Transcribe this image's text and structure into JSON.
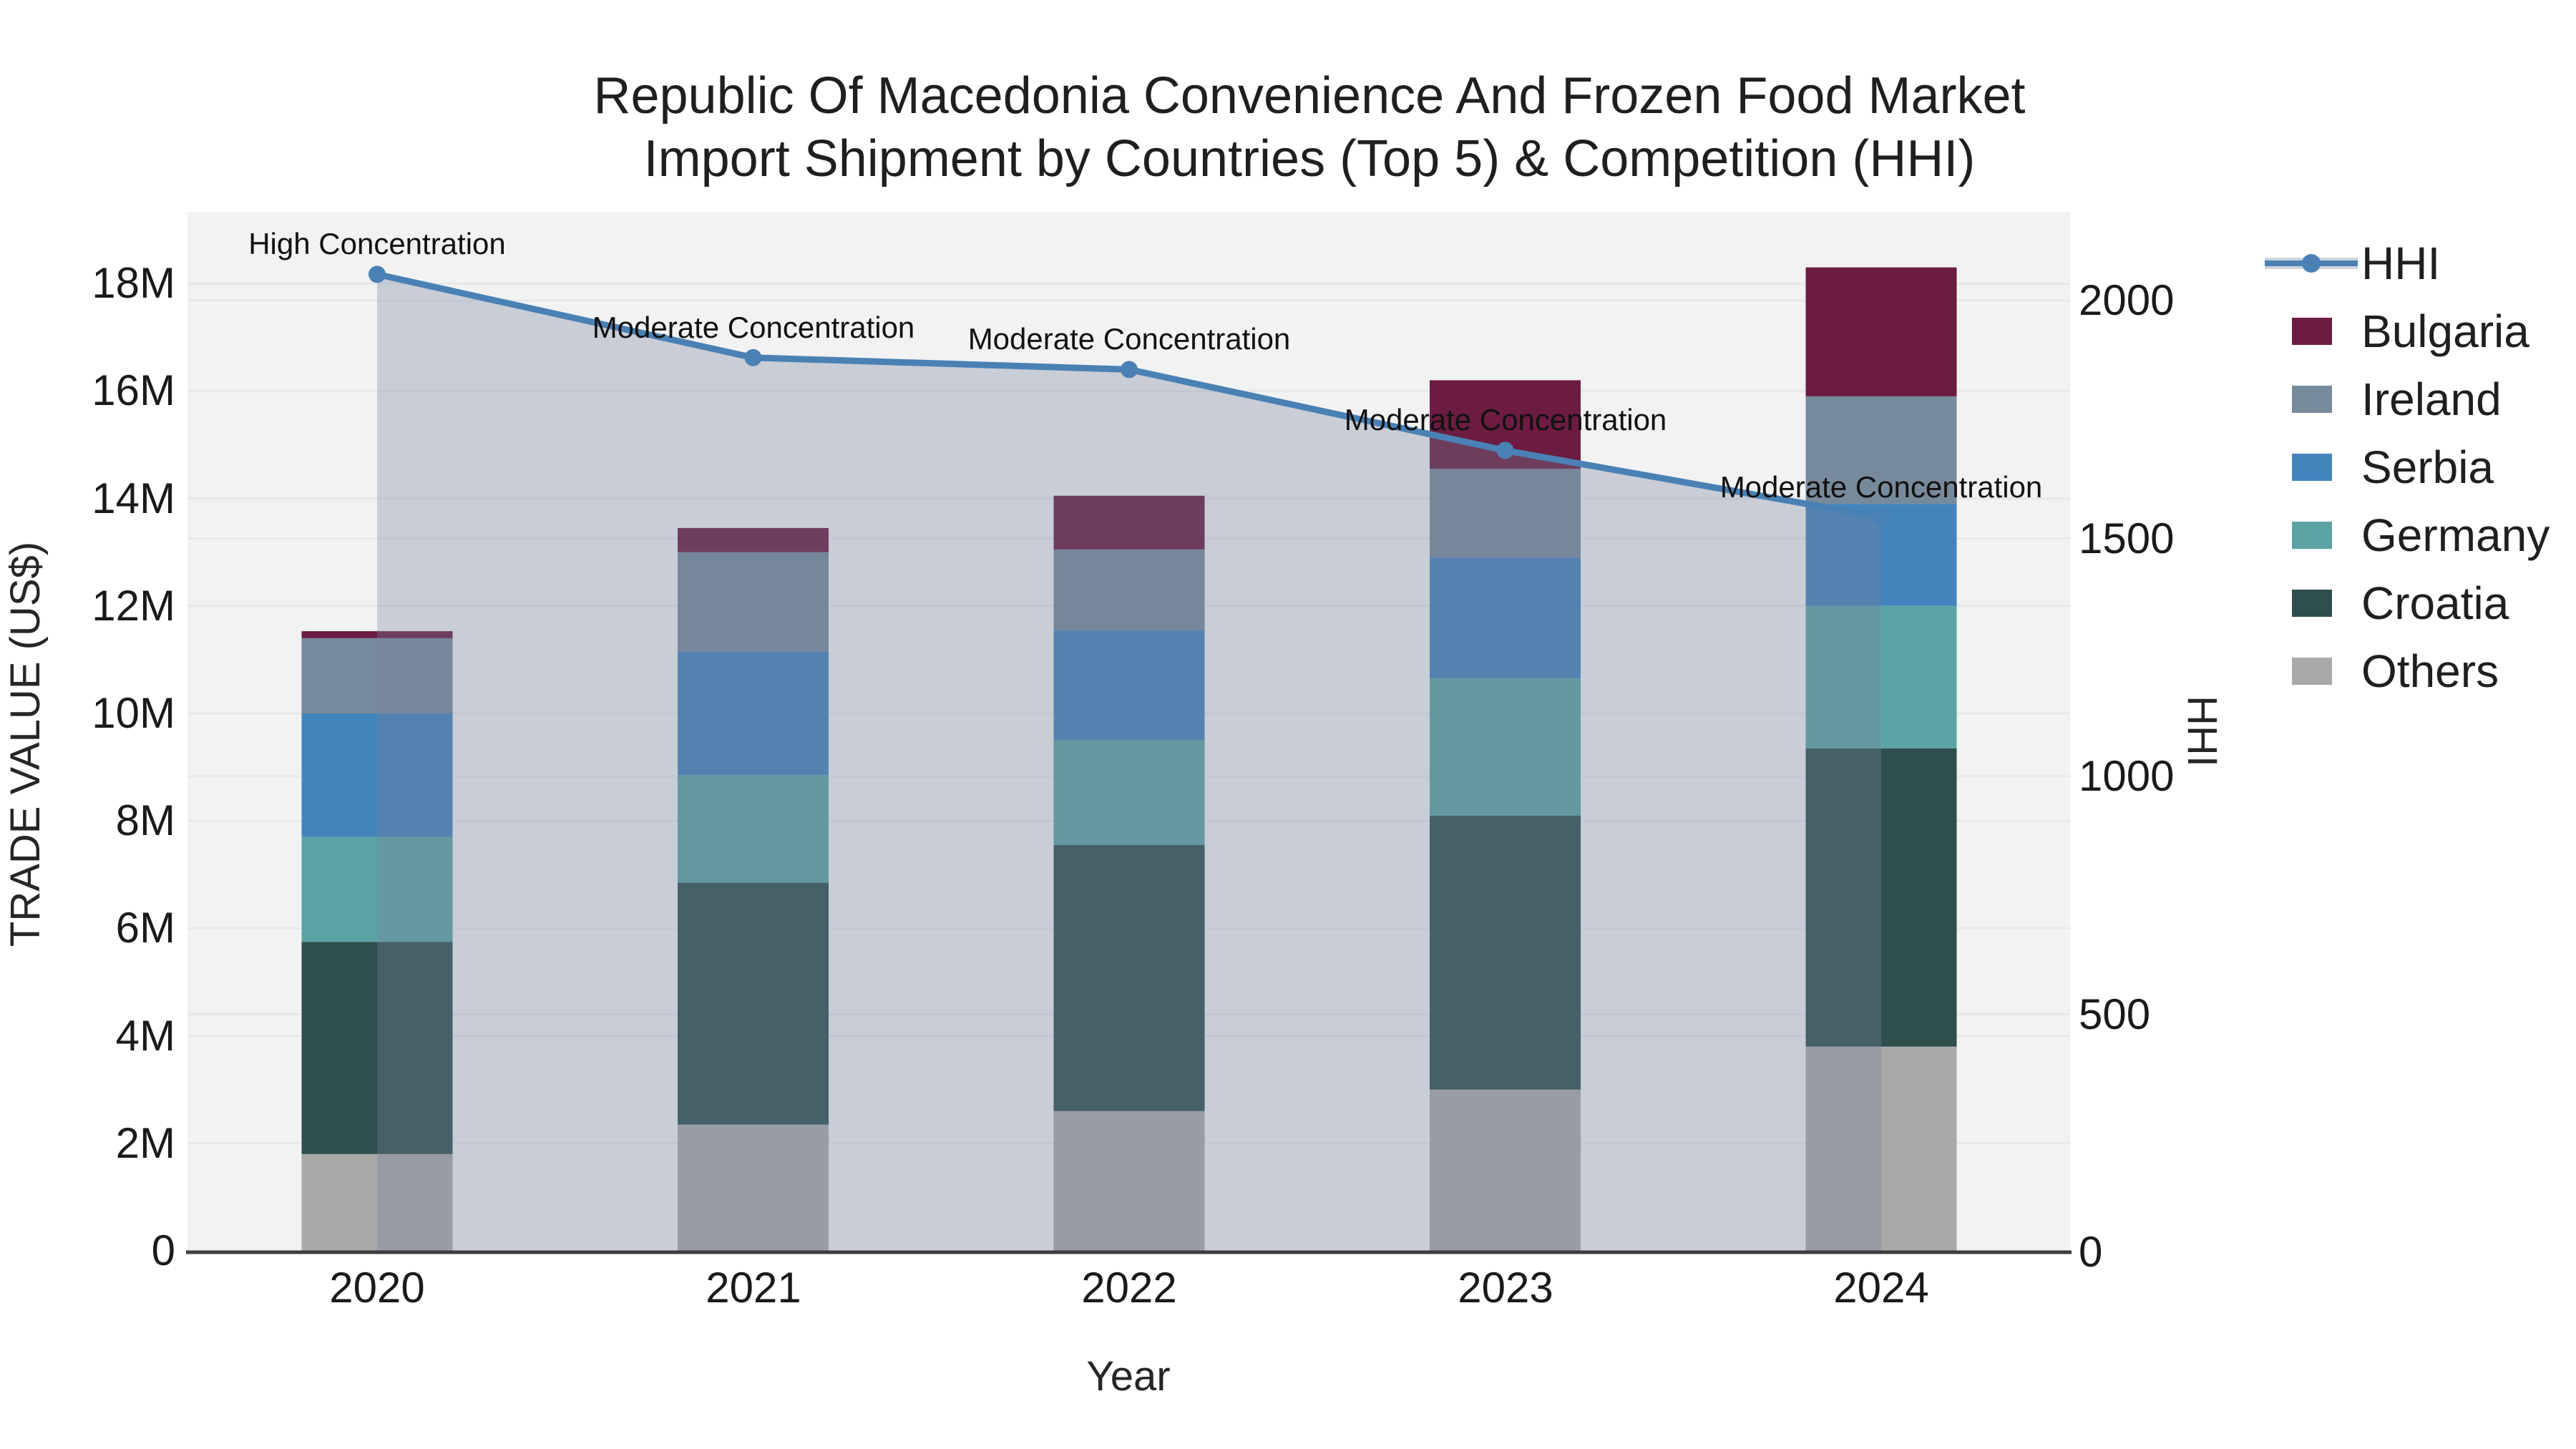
{
  "title": {
    "line1": "Republic Of Macedonia Convenience And Frozen Food Market",
    "line2": "Import Shipment by Countries (Top 5) & Competition (HHI)"
  },
  "legend": [
    {
      "label": "HHI",
      "symbol": "line",
      "color": "#4a81b4"
    },
    {
      "label": "Bulgaria",
      "symbol": "swatch",
      "color": "#6b1c40"
    },
    {
      "label": "Ireland",
      "symbol": "swatch",
      "color": "#778a9c"
    },
    {
      "label": "Serbia",
      "symbol": "swatch",
      "color": "#4384bc"
    },
    {
      "label": "Germany",
      "symbol": "swatch",
      "color": "#5ca4a4"
    },
    {
      "label": "Croatia",
      "symbol": "swatch",
      "color": "#2e4f4c"
    },
    {
      "label": "Others",
      "symbol": "swatch",
      "color": "#a9a9a9"
    }
  ],
  "chart_data": {
    "type": "stacked-bar + line-area combo (dual axis)",
    "categories": [
      2020,
      2021,
      2022,
      2023,
      2024
    ],
    "x_title": "Year",
    "y_left": {
      "title": "TRADE VALUE (US$)",
      "unit": "millions USD",
      "ticks": [
        "0",
        "2M",
        "4M",
        "6M",
        "8M",
        "10M",
        "12M",
        "14M",
        "16M",
        "18M"
      ],
      "tick_values_musd": [
        0,
        2,
        4,
        6,
        8,
        10,
        12,
        14,
        16,
        18
      ],
      "range_musd": [
        0,
        19.35
      ],
      "grid": true
    },
    "y_right": {
      "title": "HHI",
      "ticks": [
        "0",
        "500",
        "1000",
        "1500",
        "2000"
      ],
      "tick_values": [
        0,
        500,
        1000,
        1500,
        2000
      ],
      "range": [
        0,
        2190
      ],
      "grid": true
    },
    "series": [
      {
        "name": "Others",
        "color": "#a9a9a9",
        "values_musd": [
          1.8,
          2.35,
          2.6,
          3.0,
          3.8
        ]
      },
      {
        "name": "Croatia",
        "color": "#2e4f4c",
        "values_musd": [
          3.95,
          4.5,
          4.95,
          5.1,
          5.55
        ]
      },
      {
        "name": "Germany",
        "color": "#5ca4a4",
        "values_musd": [
          1.95,
          2.0,
          1.95,
          2.55,
          2.65
        ]
      },
      {
        "name": "Serbia",
        "color": "#4384bc",
        "values_musd": [
          2.3,
          2.3,
          2.05,
          2.25,
          1.9
        ]
      },
      {
        "name": "Ireland",
        "color": "#778a9c",
        "values_musd": [
          1.4,
          1.85,
          1.5,
          1.65,
          2.0
        ]
      },
      {
        "name": "Bulgaria",
        "color": "#6b1c40",
        "values_musd": [
          0.13,
          0.45,
          1.0,
          1.65,
          2.4
        ]
      }
    ],
    "hhi": {
      "name": "HHI",
      "axis": "right",
      "values": [
        2055,
        1880,
        1855,
        1685,
        1545
      ],
      "line_color": "#4a81b4",
      "area_fill": "rgba(118,130,156,0.33)"
    },
    "annotations": [
      {
        "year": 2020,
        "text": "High Concentration"
      },
      {
        "year": 2021,
        "text": "Moderate Concentration"
      },
      {
        "year": 2022,
        "text": "Moderate Concentration"
      },
      {
        "year": 2023,
        "text": "Moderate Concentration"
      },
      {
        "year": 2024,
        "text": "Moderate Concentration"
      }
    ],
    "legend_position": "right",
    "plot_background": "#f2f2f3"
  }
}
